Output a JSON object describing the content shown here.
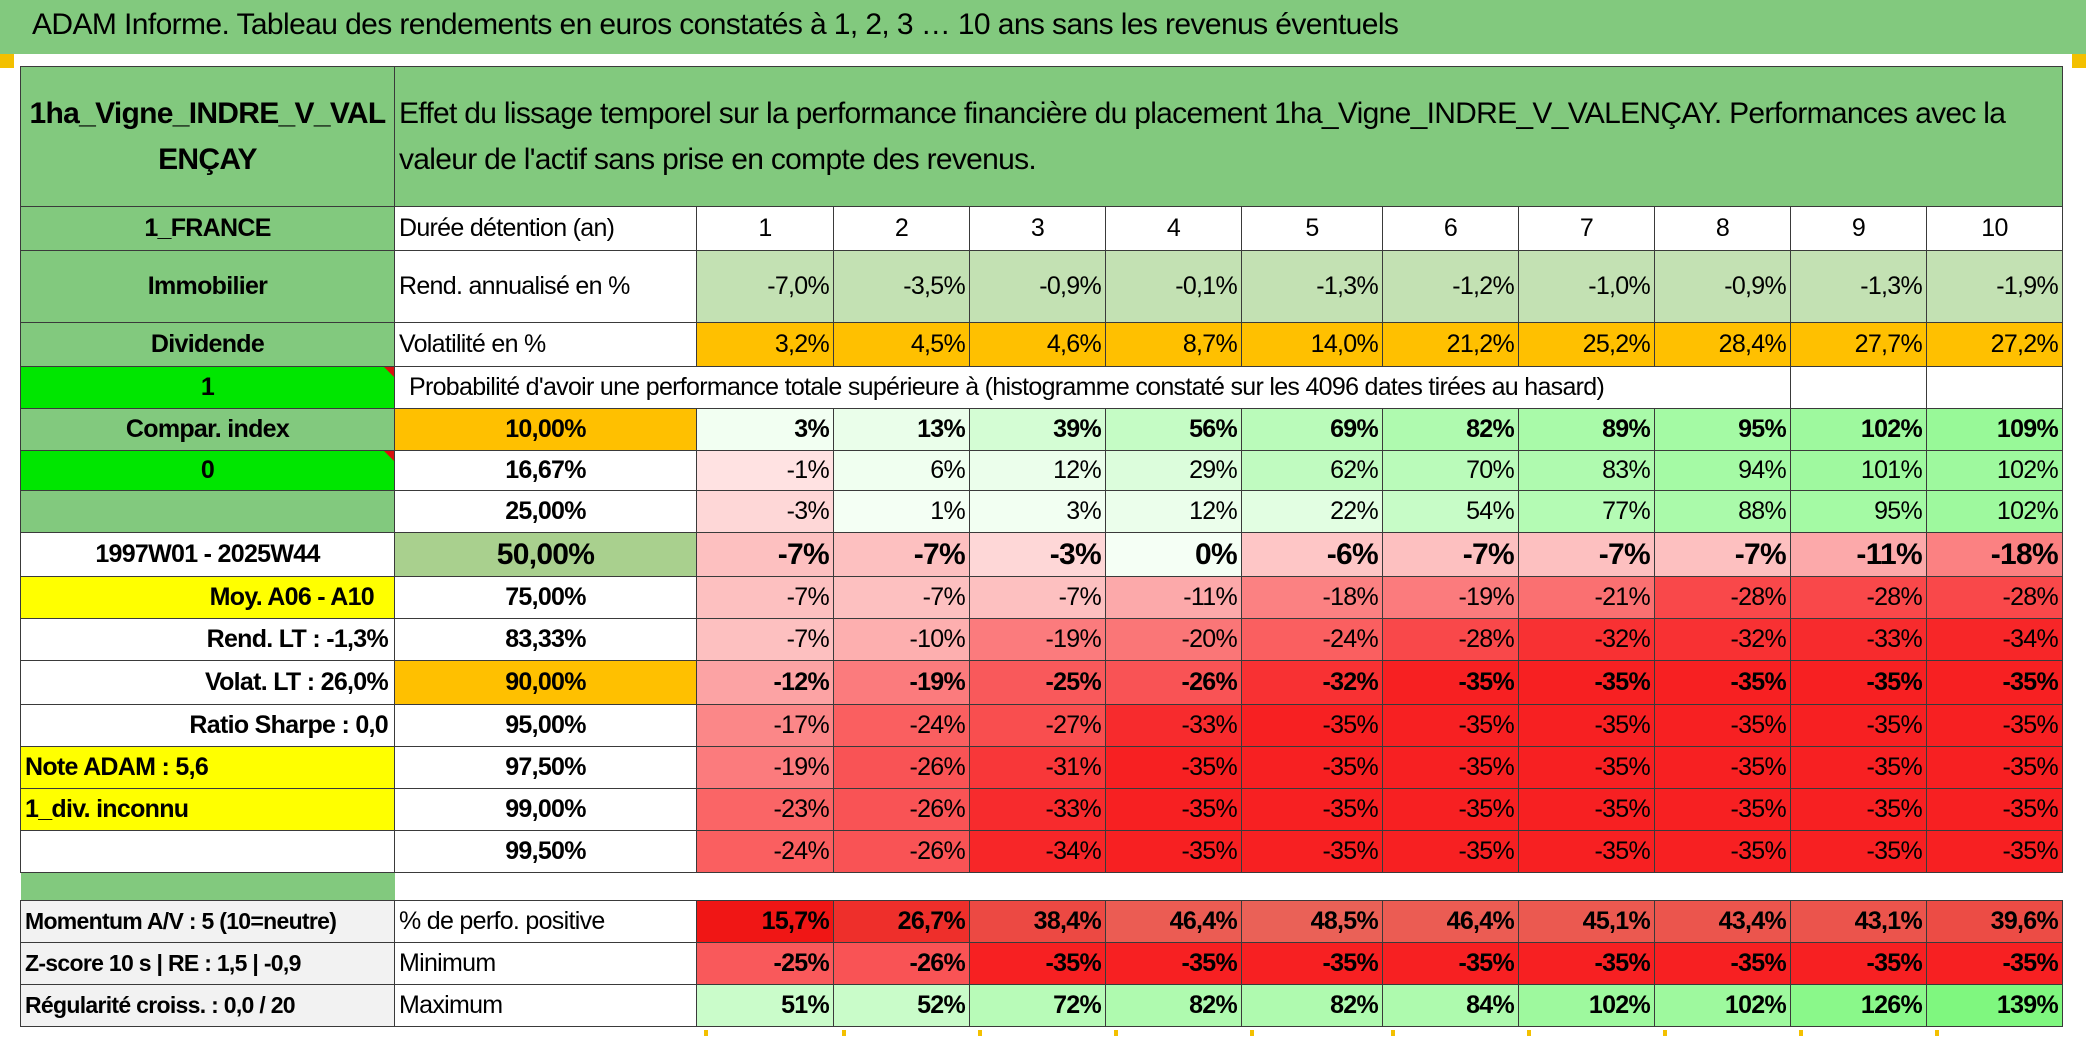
{
  "title": "ADAM Informe. Tableau des rendements en euros constatés à 1, 2, 3 … 10 ans sans les revenus éventuels",
  "header": {
    "asset_name": "1ha_Vigne_INDRE_V_VALENÇAY",
    "description": "Effet du lissage temporel sur la performance financière du placement 1ha_Vigne_INDRE_V_VALENÇAY. Performances avec la valeur de l'actif sans prise en compte des revenus."
  },
  "left_panel": {
    "country": "1_FRANCE",
    "category": "Immobilier",
    "dividend": "Dividende",
    "flag_one": "1",
    "compar_index": "Compar. index",
    "flag_zero": "0",
    "period": "1997W01 - 2025W44",
    "moy": "Moy. A06 - A10",
    "rend_lt": "Rend. LT :   -1,3%",
    "volat_lt": "Volat. LT :   26,0%",
    "ratio_sharpe": "Ratio Sharpe :    0,0",
    "note_adam": "Note ADAM : 5,6",
    "div_inconnu": "1_div. inconnu"
  },
  "duration": {
    "label": "Durée détention (an)",
    "years": [
      "1",
      "2",
      "3",
      "4",
      "5",
      "6",
      "7",
      "8",
      "9",
      "10"
    ]
  },
  "rend": {
    "label": "Rend. annualisé en %",
    "values": [
      "-7,0%",
      "-3,5%",
      "-0,9%",
      "-0,1%",
      "-1,3%",
      "-1,2%",
      "-1,0%",
      "-0,9%",
      "-1,3%",
      "-1,9%"
    ]
  },
  "volat": {
    "label": "Volatilité en %",
    "values": [
      "3,2%",
      "4,5%",
      "4,6%",
      "8,7%",
      "14,0%",
      "21,2%",
      "25,2%",
      "28,4%",
      "27,7%",
      "27,2%"
    ]
  },
  "proba_header": "Probabilité d'avoir une performance totale supérieure à (histogramme constaté sur les 4096 dates tirées au hasard)",
  "quantiles": [
    {
      "p": "10,00%",
      "values": [
        "3%",
        "13%",
        "39%",
        "56%",
        "69%",
        "82%",
        "89%",
        "95%",
        "102%",
        "109%"
      ]
    },
    {
      "p": "16,67%",
      "values": [
        "-1%",
        "6%",
        "12%",
        "29%",
        "62%",
        "70%",
        "83%",
        "94%",
        "101%",
        "102%"
      ]
    },
    {
      "p": "25,00%",
      "values": [
        "-3%",
        "1%",
        "3%",
        "12%",
        "22%",
        "54%",
        "77%",
        "88%",
        "95%",
        "102%"
      ]
    },
    {
      "p": "50,00%",
      "values": [
        "-7%",
        "-7%",
        "-3%",
        "0%",
        "-6%",
        "-7%",
        "-7%",
        "-7%",
        "-11%",
        "-18%"
      ]
    },
    {
      "p": "75,00%",
      "values": [
        "-7%",
        "-7%",
        "-7%",
        "-11%",
        "-18%",
        "-19%",
        "-21%",
        "-28%",
        "-28%",
        "-28%"
      ]
    },
    {
      "p": "83,33%",
      "values": [
        "-7%",
        "-10%",
        "-19%",
        "-20%",
        "-24%",
        "-28%",
        "-32%",
        "-32%",
        "-33%",
        "-34%"
      ]
    },
    {
      "p": "90,00%",
      "values": [
        "-12%",
        "-19%",
        "-25%",
        "-26%",
        "-32%",
        "-35%",
        "-35%",
        "-35%",
        "-35%",
        "-35%"
      ]
    },
    {
      "p": "95,00%",
      "values": [
        "-17%",
        "-24%",
        "-27%",
        "-33%",
        "-35%",
        "-35%",
        "-35%",
        "-35%",
        "-35%",
        "-35%"
      ]
    },
    {
      "p": "97,50%",
      "values": [
        "-19%",
        "-26%",
        "-31%",
        "-35%",
        "-35%",
        "-35%",
        "-35%",
        "-35%",
        "-35%",
        "-35%"
      ]
    },
    {
      "p": "99,00%",
      "values": [
        "-23%",
        "-26%",
        "-33%",
        "-35%",
        "-35%",
        "-35%",
        "-35%",
        "-35%",
        "-35%",
        "-35%"
      ]
    },
    {
      "p": "99,50%",
      "values": [
        "-24%",
        "-26%",
        "-34%",
        "-35%",
        "-35%",
        "-35%",
        "-35%",
        "-35%",
        "-35%",
        "-35%"
      ]
    }
  ],
  "bottom": {
    "momentum": "Momentum A/V : 5 (10=neutre)",
    "zscore": "Z-score 10 s | RE : 1,5 | -0,9",
    "regularite": "Régularité croiss. : 0,0 / 20",
    "positive": {
      "label": "% de perfo. positive",
      "values": [
        "15,7%",
        "26,7%",
        "38,4%",
        "46,4%",
        "48,5%",
        "46,4%",
        "45,1%",
        "43,4%",
        "43,1%",
        "39,6%"
      ]
    },
    "minimum": {
      "label": "Minimum",
      "values": [
        "-25%",
        "-26%",
        "-35%",
        "-35%",
        "-35%",
        "-35%",
        "-35%",
        "-35%",
        "-35%",
        "-35%"
      ]
    },
    "maximum": {
      "label": "Maximum",
      "values": [
        "51%",
        "52%",
        "72%",
        "82%",
        "82%",
        "84%",
        "102%",
        "102%",
        "126%",
        "139%"
      ]
    }
  },
  "colors": {
    "header_green": "#82c97e",
    "bright_green": "#00e600",
    "yellow": "#ffff00",
    "orange": "#ffc000",
    "red_text": "#e0141e"
  }
}
